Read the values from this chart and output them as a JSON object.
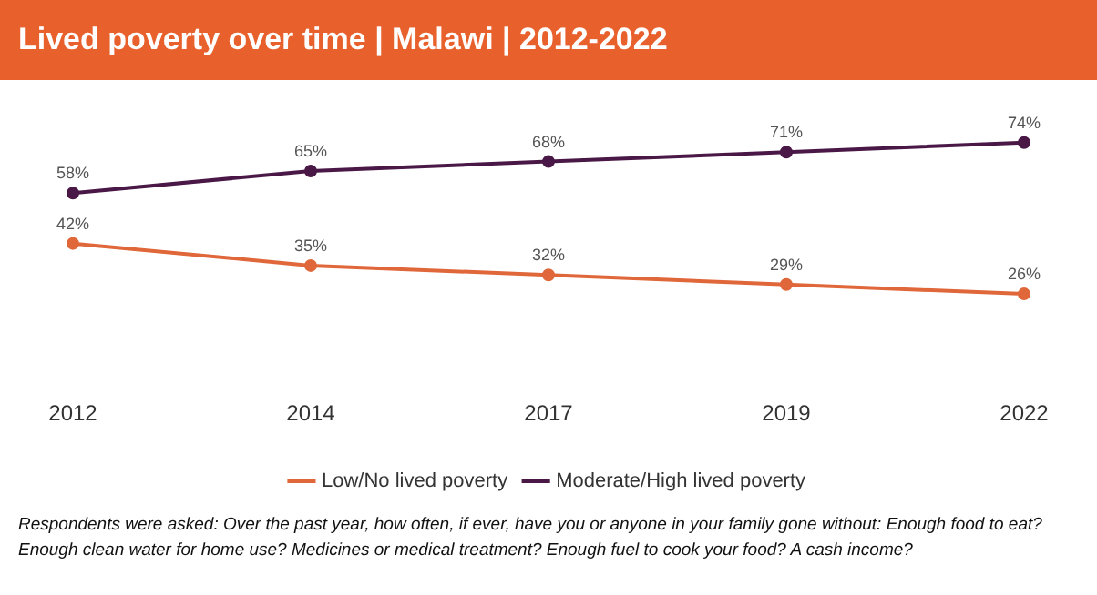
{
  "chart_data": {
    "type": "line",
    "title": "Lived poverty over time | Malawi | 2012-2022",
    "categories": [
      "2012",
      "2014",
      "2017",
      "2019",
      "2022"
    ],
    "series": [
      {
        "name": "Low/No lived poverty",
        "color": "#e0673a",
        "values": [
          42,
          35,
          32,
          29,
          26
        ],
        "value_labels": [
          "42%",
          "35%",
          "32%",
          "29%",
          "26%"
        ]
      },
      {
        "name": "Moderate/High lived poverty",
        "color": "#4a1846",
        "values": [
          58,
          65,
          68,
          71,
          74
        ],
        "value_labels": [
          "58%",
          "65%",
          "68%",
          "71%",
          "74%"
        ]
      }
    ],
    "marker": "circle",
    "line_style": "solid",
    "grid": false,
    "legend": "bottom",
    "annotations": [
      "Respondents were asked: Over the past year, how often, if ever, have you or anyone in your family gone without: Enough food to eat? Enough clean water for home use? Medicines or medical treatment? Enough fuel to cook your food? A cash income?"
    ]
  }
}
